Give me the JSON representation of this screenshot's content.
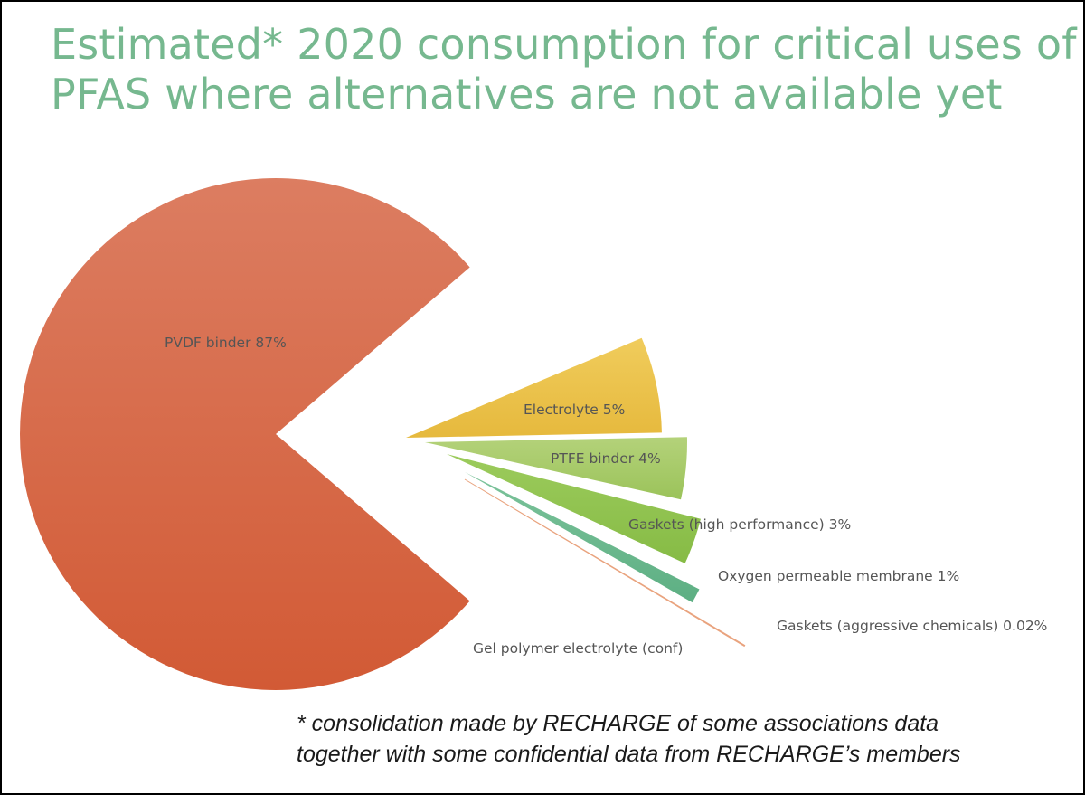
{
  "title": {
    "line1": "Estimated* 2020 consumption for critical uses of",
    "line2": "PFAS where alternatives are not available yet"
  },
  "footnote": {
    "line1": "* consolidation made by RECHARGE of some associations data",
    "line2": "together with some confidential data from  RECHARGE’s  members"
  },
  "chart_data": {
    "type": "pie",
    "title": "Estimated* 2020 consumption for critical uses of PFAS where alternatives are not available yet",
    "exploded": true,
    "slices": [
      {
        "label": "PVDF binder 87%",
        "value": 87,
        "color": "#d66a46"
      },
      {
        "label": "Electrolyte 5%",
        "value": 5,
        "color": "#e9bf4c"
      },
      {
        "label": "PTFE binder 4%",
        "value": 4,
        "color": "#a7c964"
      },
      {
        "label": "Gaskets (high performance) 3%",
        "value": 3,
        "color": "#93c350"
      },
      {
        "label": "Oxygen permeable membrane 1%",
        "value": 1,
        "color": "#6db88f"
      },
      {
        "label": "Gaskets (aggressive chemicals) 0.02%",
        "value": 0.02,
        "color": "#e9a37e"
      },
      {
        "label": "Gel polymer electrolyte (conf)",
        "value": 0,
        "color": "#cccccc"
      }
    ]
  }
}
